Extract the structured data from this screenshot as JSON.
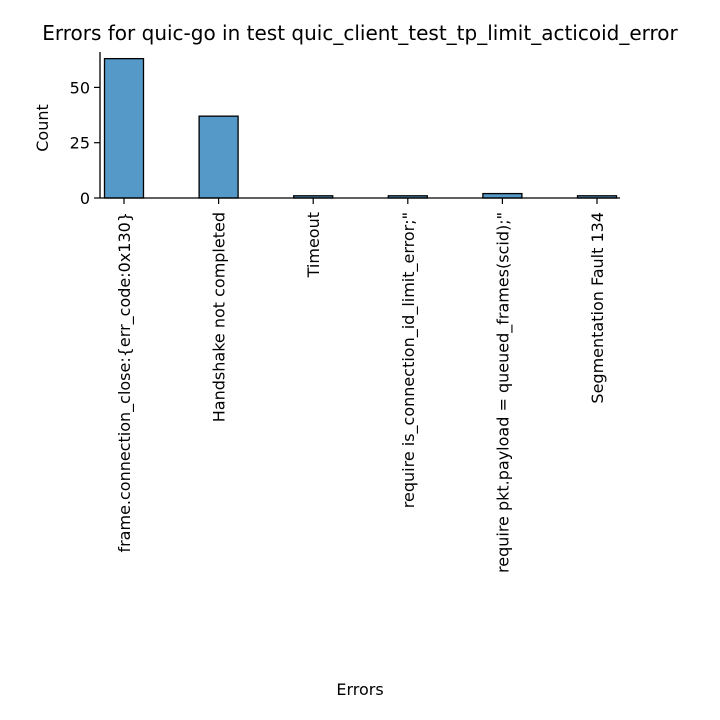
{
  "chart_data": {
    "type": "bar",
    "title": "Errors for quic-go in test quic_client_test_tp_limit_acticoid_error",
    "xlabel": "Errors",
    "ylabel": "Count",
    "categories": [
      "frame.connection_close:{err_code:0x130}",
      "Handshake not completed",
      "Timeout",
      "require is_connection_id_limit_error;\"",
      "require pkt.payload = queued_frames(scid);\"",
      "Segmentation Fault 134"
    ],
    "values": [
      63,
      37,
      1,
      1,
      2,
      1
    ],
    "ylim": [
      0,
      66
    ],
    "yticks": [
      0,
      25,
      50
    ],
    "grid": false,
    "bar_color": "#5499c7",
    "edge_color": "#000000"
  }
}
